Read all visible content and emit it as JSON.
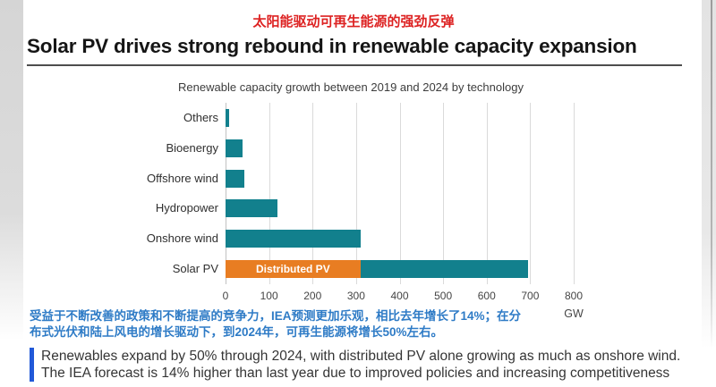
{
  "page": {
    "subtitle_cn": "太阳能驱动可再生能源的强劲反弹",
    "title": "Solar PV drives strong rebound in renewable capacity expansion"
  },
  "annotation_cn": {
    "lines": [
      "受益于不断改善的政策和不断提高的竞争力，IEA预测更加乐观，相比去年增长了14%；在分",
      "布式光伏和陆上风电的增长驱动下，到2024年，可再生能源将增长50%左右。"
    ]
  },
  "callout": {
    "lines": [
      "Renewables expand by 50% through 2024, with distributed PV alone growing as much as onshore wind.",
      "The IEA forecast is 14% higher than last year due to improved policies and increasing competitiveness"
    ]
  },
  "colors": {
    "teal": "#12808D",
    "orange": "#E87D22",
    "title_red": "#DD2222",
    "annotation_blue": "#2E7BC6",
    "callout_bar_blue": "#2159D8"
  },
  "chart_data": {
    "type": "bar",
    "orientation": "horizontal",
    "title": "Renewable capacity growth between 2019 and 2024 by technology",
    "categories": [
      "Others",
      "Bioenergy",
      "Offshore wind",
      "Hydropower",
      "Onshore wind",
      "Solar PV"
    ],
    "bars": [
      {
        "category": "Others",
        "segments": [
          {
            "value": 8,
            "color_key": "teal"
          }
        ]
      },
      {
        "category": "Bioenergy",
        "segments": [
          {
            "value": 40,
            "color_key": "teal"
          }
        ]
      },
      {
        "category": "Offshore wind",
        "segments": [
          {
            "value": 43,
            "color_key": "teal"
          }
        ]
      },
      {
        "category": "Hydropower",
        "segments": [
          {
            "value": 120,
            "color_key": "teal"
          }
        ]
      },
      {
        "category": "Onshore wind",
        "segments": [
          {
            "value": 310,
            "color_key": "teal"
          }
        ]
      },
      {
        "category": "Solar PV",
        "segments": [
          {
            "value": 310,
            "color_key": "orange",
            "label": "Distributed PV"
          },
          {
            "value": 385,
            "color_key": "teal"
          }
        ]
      }
    ],
    "xlim": [
      0,
      800
    ],
    "xticks": [
      0,
      100,
      200,
      300,
      400,
      500,
      600,
      700,
      800
    ],
    "x_unit": "GW",
    "grid": "vertical",
    "legend": "none"
  }
}
